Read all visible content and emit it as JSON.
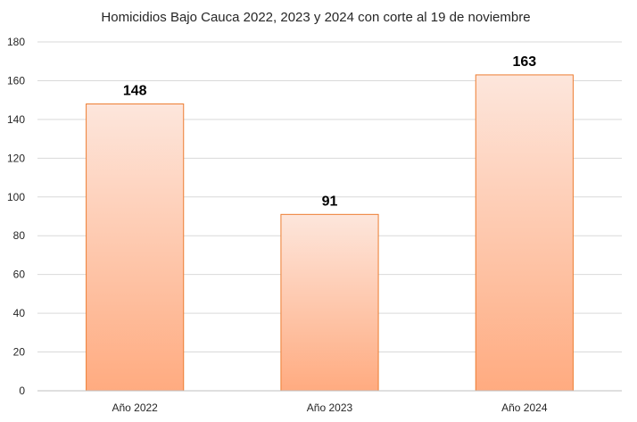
{
  "chart_data": {
    "type": "bar",
    "title": "Homicidios Bajo Cauca 2022, 2023 y 2024 con corte al 19 de noviembre",
    "categories": [
      "Año 2022",
      "Año 2023",
      "Año 2024"
    ],
    "values": [
      148,
      91,
      163
    ],
    "ylim": [
      0,
      180
    ],
    "yticks": [
      0,
      20,
      40,
      60,
      80,
      100,
      120,
      140,
      160,
      180
    ],
    "grid": true,
    "colors": {
      "bar_top": "#fde6dc",
      "bar_bottom": "#ffab80",
      "bar_border": "#ed7d31",
      "grid": "#d9d9d9",
      "axis": "#bfbfbf"
    }
  }
}
